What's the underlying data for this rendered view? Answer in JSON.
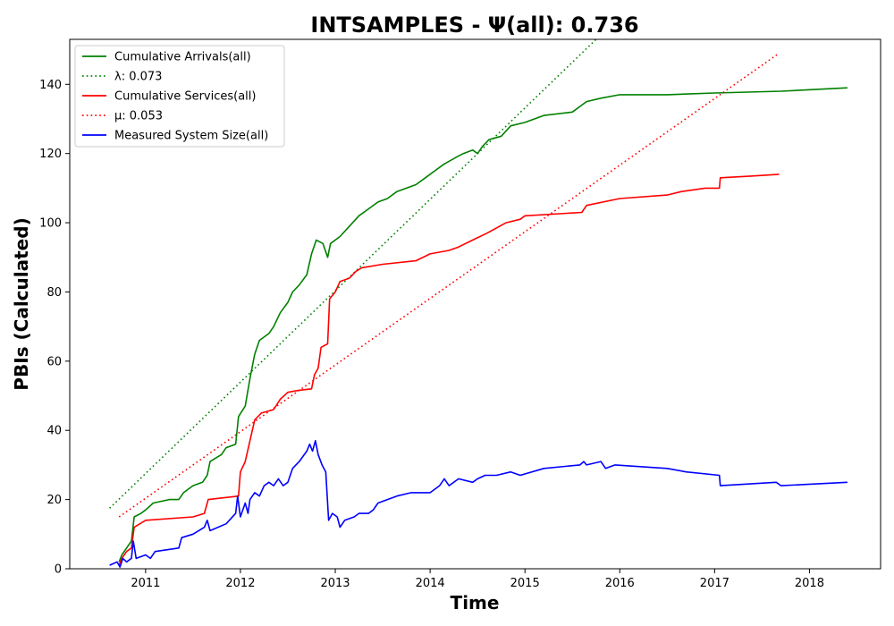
{
  "chart_data": {
    "type": "line",
    "title": "INTSAMPLES -  Ψ(all): 0.736",
    "xlabel": "Time",
    "ylabel": "PBIs (Calculated)",
    "xlim": [
      2010.2,
      2018.75
    ],
    "ylim": [
      0,
      153
    ],
    "xticks": [
      2011,
      2012,
      2013,
      2014,
      2015,
      2016,
      2017,
      2018
    ],
    "yticks": [
      0,
      20,
      40,
      60,
      80,
      100,
      120,
      140
    ],
    "legend_position": "top-left",
    "series": [
      {
        "name": "Cumulative Arrivals(all)",
        "legend_label": "Cumulative Arrivals(all)",
        "color": "#008000",
        "style": "solid",
        "points": [
          [
            2010.72,
            2
          ],
          [
            2010.75,
            4
          ],
          [
            2010.8,
            6
          ],
          [
            2010.85,
            8
          ],
          [
            2010.88,
            15
          ],
          [
            2010.95,
            16
          ],
          [
            2011.0,
            17
          ],
          [
            2011.08,
            19
          ],
          [
            2011.25,
            20
          ],
          [
            2011.35,
            20
          ],
          [
            2011.4,
            22
          ],
          [
            2011.5,
            24
          ],
          [
            2011.6,
            25
          ],
          [
            2011.65,
            27
          ],
          [
            2011.68,
            31
          ],
          [
            2011.8,
            33
          ],
          [
            2011.85,
            35
          ],
          [
            2011.95,
            36
          ],
          [
            2011.98,
            44
          ],
          [
            2012.05,
            47
          ],
          [
            2012.1,
            55
          ],
          [
            2012.15,
            62
          ],
          [
            2012.2,
            66
          ],
          [
            2012.3,
            68
          ],
          [
            2012.35,
            70
          ],
          [
            2012.42,
            74
          ],
          [
            2012.5,
            77
          ],
          [
            2012.55,
            80
          ],
          [
            2012.62,
            82
          ],
          [
            2012.7,
            85
          ],
          [
            2012.75,
            91
          ],
          [
            2012.8,
            95
          ],
          [
            2012.87,
            94
          ],
          [
            2012.92,
            90
          ],
          [
            2012.95,
            94
          ],
          [
            2013.05,
            96
          ],
          [
            2013.15,
            99
          ],
          [
            2013.25,
            102
          ],
          [
            2013.35,
            104
          ],
          [
            2013.45,
            106
          ],
          [
            2013.55,
            107
          ],
          [
            2013.65,
            109
          ],
          [
            2013.85,
            111
          ],
          [
            2013.95,
            113
          ],
          [
            2014.05,
            115
          ],
          [
            2014.15,
            117
          ],
          [
            2014.28,
            119
          ],
          [
            2014.35,
            120
          ],
          [
            2014.45,
            121
          ],
          [
            2014.5,
            120
          ],
          [
            2014.55,
            122
          ],
          [
            2014.62,
            124
          ],
          [
            2014.75,
            125
          ],
          [
            2014.85,
            128
          ],
          [
            2015.0,
            129
          ],
          [
            2015.2,
            131
          ],
          [
            2015.5,
            132
          ],
          [
            2015.6,
            134
          ],
          [
            2015.65,
            135
          ],
          [
            2015.8,
            136
          ],
          [
            2016.0,
            137
          ],
          [
            2016.5,
            137
          ],
          [
            2017.0,
            137.5
          ],
          [
            2017.7,
            138
          ],
          [
            2018.4,
            139
          ]
        ]
      },
      {
        "name": "λ fit",
        "legend_label": "λ: 0.073",
        "color": "#008000",
        "style": "dotted",
        "points": [
          [
            2010.62,
            17.5
          ],
          [
            2015.75,
            153
          ]
        ]
      },
      {
        "name": "Cumulative Services(all)",
        "legend_label": "Cumulative Services(all)",
        "color": "#ff0000",
        "style": "solid",
        "points": [
          [
            2010.72,
            1
          ],
          [
            2010.75,
            3
          ],
          [
            2010.8,
            5
          ],
          [
            2010.85,
            6
          ],
          [
            2010.88,
            12
          ],
          [
            2011.0,
            14
          ],
          [
            2011.5,
            15
          ],
          [
            2011.62,
            16
          ],
          [
            2011.66,
            20
          ],
          [
            2011.98,
            21
          ],
          [
            2012.0,
            28
          ],
          [
            2012.05,
            31
          ],
          [
            2012.1,
            37
          ],
          [
            2012.15,
            43
          ],
          [
            2012.22,
            45
          ],
          [
            2012.35,
            46
          ],
          [
            2012.42,
            49
          ],
          [
            2012.5,
            51
          ],
          [
            2012.6,
            51.5
          ],
          [
            2012.75,
            52
          ],
          [
            2012.78,
            56
          ],
          [
            2012.82,
            58
          ],
          [
            2012.85,
            64
          ],
          [
            2012.92,
            65
          ],
          [
            2012.94,
            78
          ],
          [
            2013.0,
            80
          ],
          [
            2013.05,
            83
          ],
          [
            2013.15,
            84
          ],
          [
            2013.22,
            86
          ],
          [
            2013.28,
            87
          ],
          [
            2013.5,
            88
          ],
          [
            2013.85,
            89
          ],
          [
            2014.0,
            91
          ],
          [
            2014.2,
            92
          ],
          [
            2014.3,
            93
          ],
          [
            2014.45,
            95
          ],
          [
            2014.6,
            97
          ],
          [
            2014.8,
            100
          ],
          [
            2014.95,
            101
          ],
          [
            2015.0,
            102
          ],
          [
            2015.6,
            103
          ],
          [
            2015.65,
            105
          ],
          [
            2016.0,
            107
          ],
          [
            2016.5,
            108
          ],
          [
            2016.65,
            109
          ],
          [
            2016.9,
            110
          ],
          [
            2017.05,
            110
          ],
          [
            2017.06,
            113
          ],
          [
            2017.4,
            113.5
          ],
          [
            2017.68,
            114
          ]
        ]
      },
      {
        "name": "μ fit",
        "legend_label": "μ: 0.053",
        "color": "#ff0000",
        "style": "dotted",
        "points": [
          [
            2010.72,
            15
          ],
          [
            2017.68,
            149
          ]
        ]
      },
      {
        "name": "Measured System Size(all)",
        "legend_label": "Measured System Size(all)",
        "color": "#0000ff",
        "style": "solid",
        "points": [
          [
            2010.62,
            1
          ],
          [
            2010.7,
            2
          ],
          [
            2010.73,
            0.5
          ],
          [
            2010.76,
            3
          ],
          [
            2010.8,
            2
          ],
          [
            2010.85,
            3
          ],
          [
            2010.87,
            8
          ],
          [
            2010.9,
            3
          ],
          [
            2011.0,
            4
          ],
          [
            2011.05,
            3
          ],
          [
            2011.1,
            5
          ],
          [
            2011.35,
            6
          ],
          [
            2011.38,
            9
          ],
          [
            2011.5,
            10
          ],
          [
            2011.62,
            12
          ],
          [
            2011.65,
            14
          ],
          [
            2011.68,
            11
          ],
          [
            2011.85,
            13
          ],
          [
            2011.95,
            16
          ],
          [
            2011.97,
            21
          ],
          [
            2012.0,
            15
          ],
          [
            2012.05,
            19
          ],
          [
            2012.08,
            16
          ],
          [
            2012.1,
            20
          ],
          [
            2012.15,
            22
          ],
          [
            2012.2,
            21
          ],
          [
            2012.25,
            24
          ],
          [
            2012.3,
            25
          ],
          [
            2012.35,
            24
          ],
          [
            2012.4,
            26
          ],
          [
            2012.45,
            24
          ],
          [
            2012.5,
            25
          ],
          [
            2012.55,
            29
          ],
          [
            2012.62,
            31
          ],
          [
            2012.7,
            34
          ],
          [
            2012.73,
            36
          ],
          [
            2012.76,
            34
          ],
          [
            2012.79,
            37
          ],
          [
            2012.82,
            33
          ],
          [
            2012.86,
            30
          ],
          [
            2012.9,
            28
          ],
          [
            2012.93,
            14
          ],
          [
            2012.97,
            16
          ],
          [
            2013.02,
            15
          ],
          [
            2013.05,
            12
          ],
          [
            2013.1,
            14
          ],
          [
            2013.2,
            15
          ],
          [
            2013.25,
            16
          ],
          [
            2013.35,
            16
          ],
          [
            2013.4,
            17
          ],
          [
            2013.45,
            19
          ],
          [
            2013.55,
            20
          ],
          [
            2013.65,
            21
          ],
          [
            2013.8,
            22
          ],
          [
            2013.9,
            22
          ],
          [
            2014.0,
            22
          ],
          [
            2014.1,
            24
          ],
          [
            2014.15,
            26
          ],
          [
            2014.2,
            24
          ],
          [
            2014.3,
            26
          ],
          [
            2014.45,
            25
          ],
          [
            2014.5,
            26
          ],
          [
            2014.58,
            27
          ],
          [
            2014.7,
            27
          ],
          [
            2014.85,
            28
          ],
          [
            2014.95,
            27
          ],
          [
            2015.2,
            29
          ],
          [
            2015.58,
            30
          ],
          [
            2015.62,
            31
          ],
          [
            2015.65,
            30
          ],
          [
            2015.8,
            31
          ],
          [
            2015.85,
            29
          ],
          [
            2015.95,
            30
          ],
          [
            2016.5,
            29
          ],
          [
            2016.7,
            28
          ],
          [
            2017.05,
            27
          ],
          [
            2017.06,
            24
          ],
          [
            2017.65,
            25
          ],
          [
            2017.7,
            24
          ],
          [
            2018.4,
            25
          ]
        ]
      }
    ]
  }
}
